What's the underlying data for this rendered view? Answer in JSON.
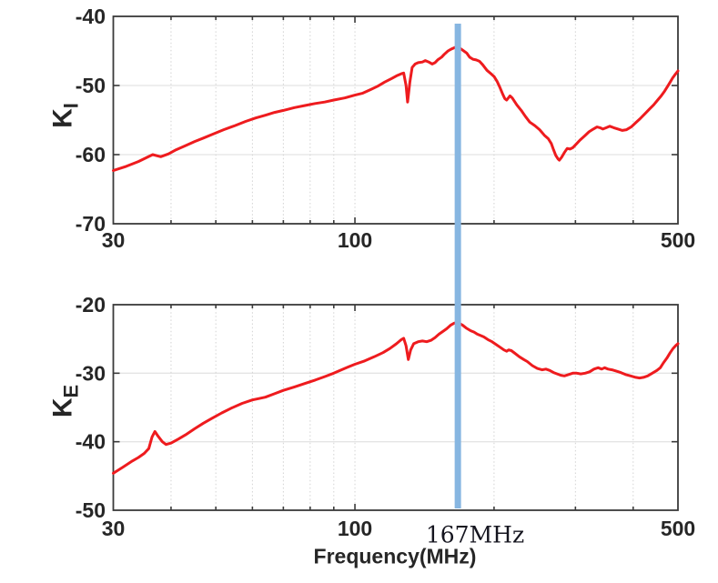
{
  "figure": {
    "background": "#ffffff"
  },
  "xlabel": "Frequency(MHz)",
  "annotation": {
    "label": "167MHz",
    "freq_mhz": 167,
    "line_color": "#87b6e1",
    "label_color": "#15151f"
  },
  "style": {
    "axis_color": "#3a3a3a",
    "tick_label_color": "#262626",
    "h_grid_color": "#e4e4e4",
    "v_grid_color": "#d2d2d2",
    "curve_color": "#ee1b1e",
    "background": "#ffffff"
  },
  "chart_data": [
    {
      "type": "line",
      "title": "",
      "xscale": "log",
      "xlim": [
        30,
        500
      ],
      "ylim": [
        -70,
        -40
      ],
      "xticks": [
        30,
        100,
        500
      ],
      "xminor_ticks": [
        40,
        50,
        60,
        70,
        80,
        90,
        200,
        300,
        400
      ],
      "yticks": [
        -40,
        -50,
        -60,
        -70
      ],
      "grid": true,
      "ylabel": {
        "base": "K",
        "sub": "I"
      },
      "series": [
        {
          "name": "ki",
          "color": "#ee1b1e",
          "points": [
            [
              30,
              -62.3
            ],
            [
              32,
              -61.7
            ],
            [
              34,
              -61.0
            ],
            [
              35.5,
              -60.4
            ],
            [
              36.5,
              -60.0
            ],
            [
              38,
              -60.3
            ],
            [
              39.5,
              -59.9
            ],
            [
              41,
              -59.3
            ],
            [
              43,
              -58.7
            ],
            [
              45,
              -58.1
            ],
            [
              47,
              -57.6
            ],
            [
              49,
              -57.1
            ],
            [
              52,
              -56.4
            ],
            [
              55,
              -55.8
            ],
            [
              58,
              -55.2
            ],
            [
              61,
              -54.7
            ],
            [
              64,
              -54.3
            ],
            [
              67,
              -53.9
            ],
            [
              70,
              -53.6
            ],
            [
              74,
              -53.2
            ],
            [
              78,
              -52.9
            ],
            [
              82,
              -52.6
            ],
            [
              86,
              -52.4
            ],
            [
              90,
              -52.1
            ],
            [
              95,
              -51.8
            ],
            [
              100,
              -51.4
            ],
            [
              104,
              -51.1
            ],
            [
              108,
              -50.6
            ],
            [
              112,
              -50.1
            ],
            [
              116,
              -49.5
            ],
            [
              120,
              -49.0
            ],
            [
              123,
              -48.6
            ],
            [
              126,
              -48.3
            ],
            [
              127.5,
              -48.2
            ],
            [
              129,
              -50.0
            ],
            [
              130,
              -52.4
            ],
            [
              131.5,
              -49.5
            ],
            [
              133,
              -47.4
            ],
            [
              135,
              -46.9
            ],
            [
              137,
              -46.7
            ],
            [
              140,
              -46.6
            ],
            [
              142,
              -46.4
            ],
            [
              144.5,
              -46.6
            ],
            [
              147,
              -46.9
            ],
            [
              149,
              -46.7
            ],
            [
              151,
              -46.3
            ],
            [
              154,
              -45.9
            ],
            [
              156,
              -45.5
            ],
            [
              159,
              -45.0
            ],
            [
              162,
              -44.7
            ],
            [
              164.5,
              -44.5
            ],
            [
              167,
              -44.4
            ],
            [
              169.5,
              -44.7
            ],
            [
              172,
              -45.0
            ],
            [
              174.5,
              -45.3
            ],
            [
              177,
              -45.9
            ],
            [
              180,
              -46.2
            ],
            [
              183,
              -46.3
            ],
            [
              186,
              -46.5
            ],
            [
              189,
              -47.0
            ],
            [
              193,
              -47.8
            ],
            [
              197,
              -48.3
            ],
            [
              200,
              -48.7
            ],
            [
              203,
              -49.4
            ],
            [
              206,
              -50.3
            ],
            [
              209,
              -51.3
            ],
            [
              211,
              -51.9
            ],
            [
              213,
              -52.1
            ],
            [
              216.5,
              -51.5
            ],
            [
              219,
              -51.8
            ],
            [
              224,
              -52.8
            ],
            [
              229,
              -53.6
            ],
            [
              234,
              -54.5
            ],
            [
              239,
              -55.3
            ],
            [
              245,
              -55.8
            ],
            [
              251,
              -56.4
            ],
            [
              257,
              -57.2
            ],
            [
              262,
              -57.7
            ],
            [
              266,
              -58.4
            ],
            [
              269,
              -59.3
            ],
            [
              272,
              -60.1
            ],
            [
              275,
              -60.6
            ],
            [
              277,
              -60.8
            ],
            [
              280,
              -60.4
            ],
            [
              284,
              -59.7
            ],
            [
              288,
              -59.1
            ],
            [
              292,
              -59.2
            ],
            [
              296,
              -59.0
            ],
            [
              301,
              -58.5
            ],
            [
              307,
              -57.9
            ],
            [
              314,
              -57.3
            ],
            [
              321,
              -56.7
            ],
            [
              328,
              -56.3
            ],
            [
              334,
              -56.0
            ],
            [
              339,
              -56.1
            ],
            [
              344,
              -56.3
            ],
            [
              350,
              -56.1
            ],
            [
              356,
              -55.9
            ],
            [
              363,
              -56.1
            ],
            [
              371,
              -56.3
            ],
            [
              379,
              -56.5
            ],
            [
              387,
              -56.4
            ],
            [
              396,
              -56.0
            ],
            [
              405,
              -55.4
            ],
            [
              414,
              -54.8
            ],
            [
              424,
              -54.1
            ],
            [
              434,
              -53.4
            ],
            [
              443,
              -52.8
            ],
            [
              452,
              -52.1
            ],
            [
              460,
              -51.5
            ],
            [
              468,
              -50.8
            ],
            [
              475,
              -50.1
            ],
            [
              481,
              -49.5
            ],
            [
              487,
              -48.9
            ],
            [
              492,
              -48.5
            ],
            [
              496,
              -48.2
            ],
            [
              500,
              -47.9
            ]
          ]
        }
      ]
    },
    {
      "type": "line",
      "title": "",
      "xscale": "log",
      "xlim": [
        30,
        500
      ],
      "ylim": [
        -50,
        -20
      ],
      "xticks": [
        30,
        100,
        500
      ],
      "xminor_ticks": [
        40,
        50,
        60,
        70,
        80,
        90,
        200,
        300,
        400
      ],
      "yticks": [
        -20,
        -30,
        -40,
        -50
      ],
      "grid": true,
      "ylabel": {
        "base": "K",
        "sub": "E"
      },
      "series": [
        {
          "name": "ke",
          "color": "#ee1b1e",
          "points": [
            [
              30,
              -44.6
            ],
            [
              31.5,
              -43.7
            ],
            [
              33,
              -42.8
            ],
            [
              34,
              -42.3
            ],
            [
              35,
              -41.7
            ],
            [
              35.8,
              -41.0
            ],
            [
              36.4,
              -39.3
            ],
            [
              36.9,
              -38.5
            ],
            [
              37.5,
              -39.2
            ],
            [
              38.3,
              -40.0
            ],
            [
              39,
              -40.4
            ],
            [
              40,
              -40.2
            ],
            [
              41.5,
              -39.6
            ],
            [
              43,
              -39.0
            ],
            [
              45,
              -38.1
            ],
            [
              47,
              -37.3
            ],
            [
              49,
              -36.6
            ],
            [
              51.5,
              -35.8
            ],
            [
              54,
              -35.1
            ],
            [
              57,
              -34.4
            ],
            [
              60,
              -33.9
            ],
            [
              62,
              -33.7
            ],
            [
              64,
              -33.5
            ],
            [
              67,
              -33.0
            ],
            [
              70,
              -32.5
            ],
            [
              74,
              -32.0
            ],
            [
              78,
              -31.5
            ],
            [
              82,
              -31.0
            ],
            [
              86,
              -30.5
            ],
            [
              90,
              -30.0
            ],
            [
              95,
              -29.3
            ],
            [
              100,
              -28.7
            ],
            [
              105,
              -28.2
            ],
            [
              110,
              -27.6
            ],
            [
              115,
              -27.0
            ],
            [
              119,
              -26.4
            ],
            [
              123,
              -25.7
            ],
            [
              126,
              -25.1
            ],
            [
              127.5,
              -24.9
            ],
            [
              129,
              -26.0
            ],
            [
              130.5,
              -28.0
            ],
            [
              132,
              -26.6
            ],
            [
              134,
              -25.7
            ],
            [
              137,
              -25.4
            ],
            [
              140,
              -25.3
            ],
            [
              143,
              -25.4
            ],
            [
              146,
              -25.2
            ],
            [
              149,
              -24.8
            ],
            [
              152,
              -24.3
            ],
            [
              155,
              -23.9
            ],
            [
              158,
              -23.5
            ],
            [
              161,
              -23.0
            ],
            [
              164,
              -22.7
            ],
            [
              166,
              -22.6
            ],
            [
              168,
              -22.7
            ],
            [
              171,
              -23.0
            ],
            [
              174,
              -23.4
            ],
            [
              178,
              -23.8
            ],
            [
              181,
              -24.0
            ],
            [
              184,
              -24.3
            ],
            [
              187,
              -24.5
            ],
            [
              190,
              -24.7
            ],
            [
              194,
              -25.1
            ],
            [
              198,
              -25.4
            ],
            [
              202,
              -25.8
            ],
            [
              206,
              -26.2
            ],
            [
              210,
              -26.6
            ],
            [
              213,
              -26.8
            ],
            [
              215,
              -26.6
            ],
            [
              218,
              -26.7
            ],
            [
              222,
              -27.1
            ],
            [
              227,
              -27.6
            ],
            [
              232,
              -28.0
            ],
            [
              236,
              -28.3
            ],
            [
              242,
              -28.9
            ],
            [
              248,
              -29.3
            ],
            [
              254,
              -29.5
            ],
            [
              259,
              -29.4
            ],
            [
              264,
              -29.6
            ],
            [
              269,
              -29.9
            ],
            [
              274,
              -30.1
            ],
            [
              279,
              -30.3
            ],
            [
              284,
              -30.4
            ],
            [
              290,
              -30.2
            ],
            [
              296,
              -30.0
            ],
            [
              302,
              -30.0
            ],
            [
              308,
              -30.1
            ],
            [
              315,
              -30.0
            ],
            [
              322,
              -29.8
            ],
            [
              329,
              -29.4
            ],
            [
              336,
              -29.2
            ],
            [
              342,
              -29.4
            ],
            [
              347,
              -29.2
            ],
            [
              353,
              -29.4
            ],
            [
              360,
              -29.5
            ],
            [
              368,
              -29.7
            ],
            [
              376,
              -29.9
            ],
            [
              385,
              -30.2
            ],
            [
              395,
              -30.4
            ],
            [
              405,
              -30.6
            ],
            [
              413,
              -30.7
            ],
            [
              421,
              -30.6
            ],
            [
              430,
              -30.4
            ],
            [
              440,
              -30.0
            ],
            [
              450,
              -29.6
            ],
            [
              458,
              -29.2
            ],
            [
              465,
              -28.5
            ],
            [
              473,
              -27.8
            ],
            [
              481,
              -27.0
            ],
            [
              488,
              -26.4
            ],
            [
              494,
              -26.0
            ],
            [
              500,
              -25.7
            ]
          ]
        }
      ]
    }
  ]
}
